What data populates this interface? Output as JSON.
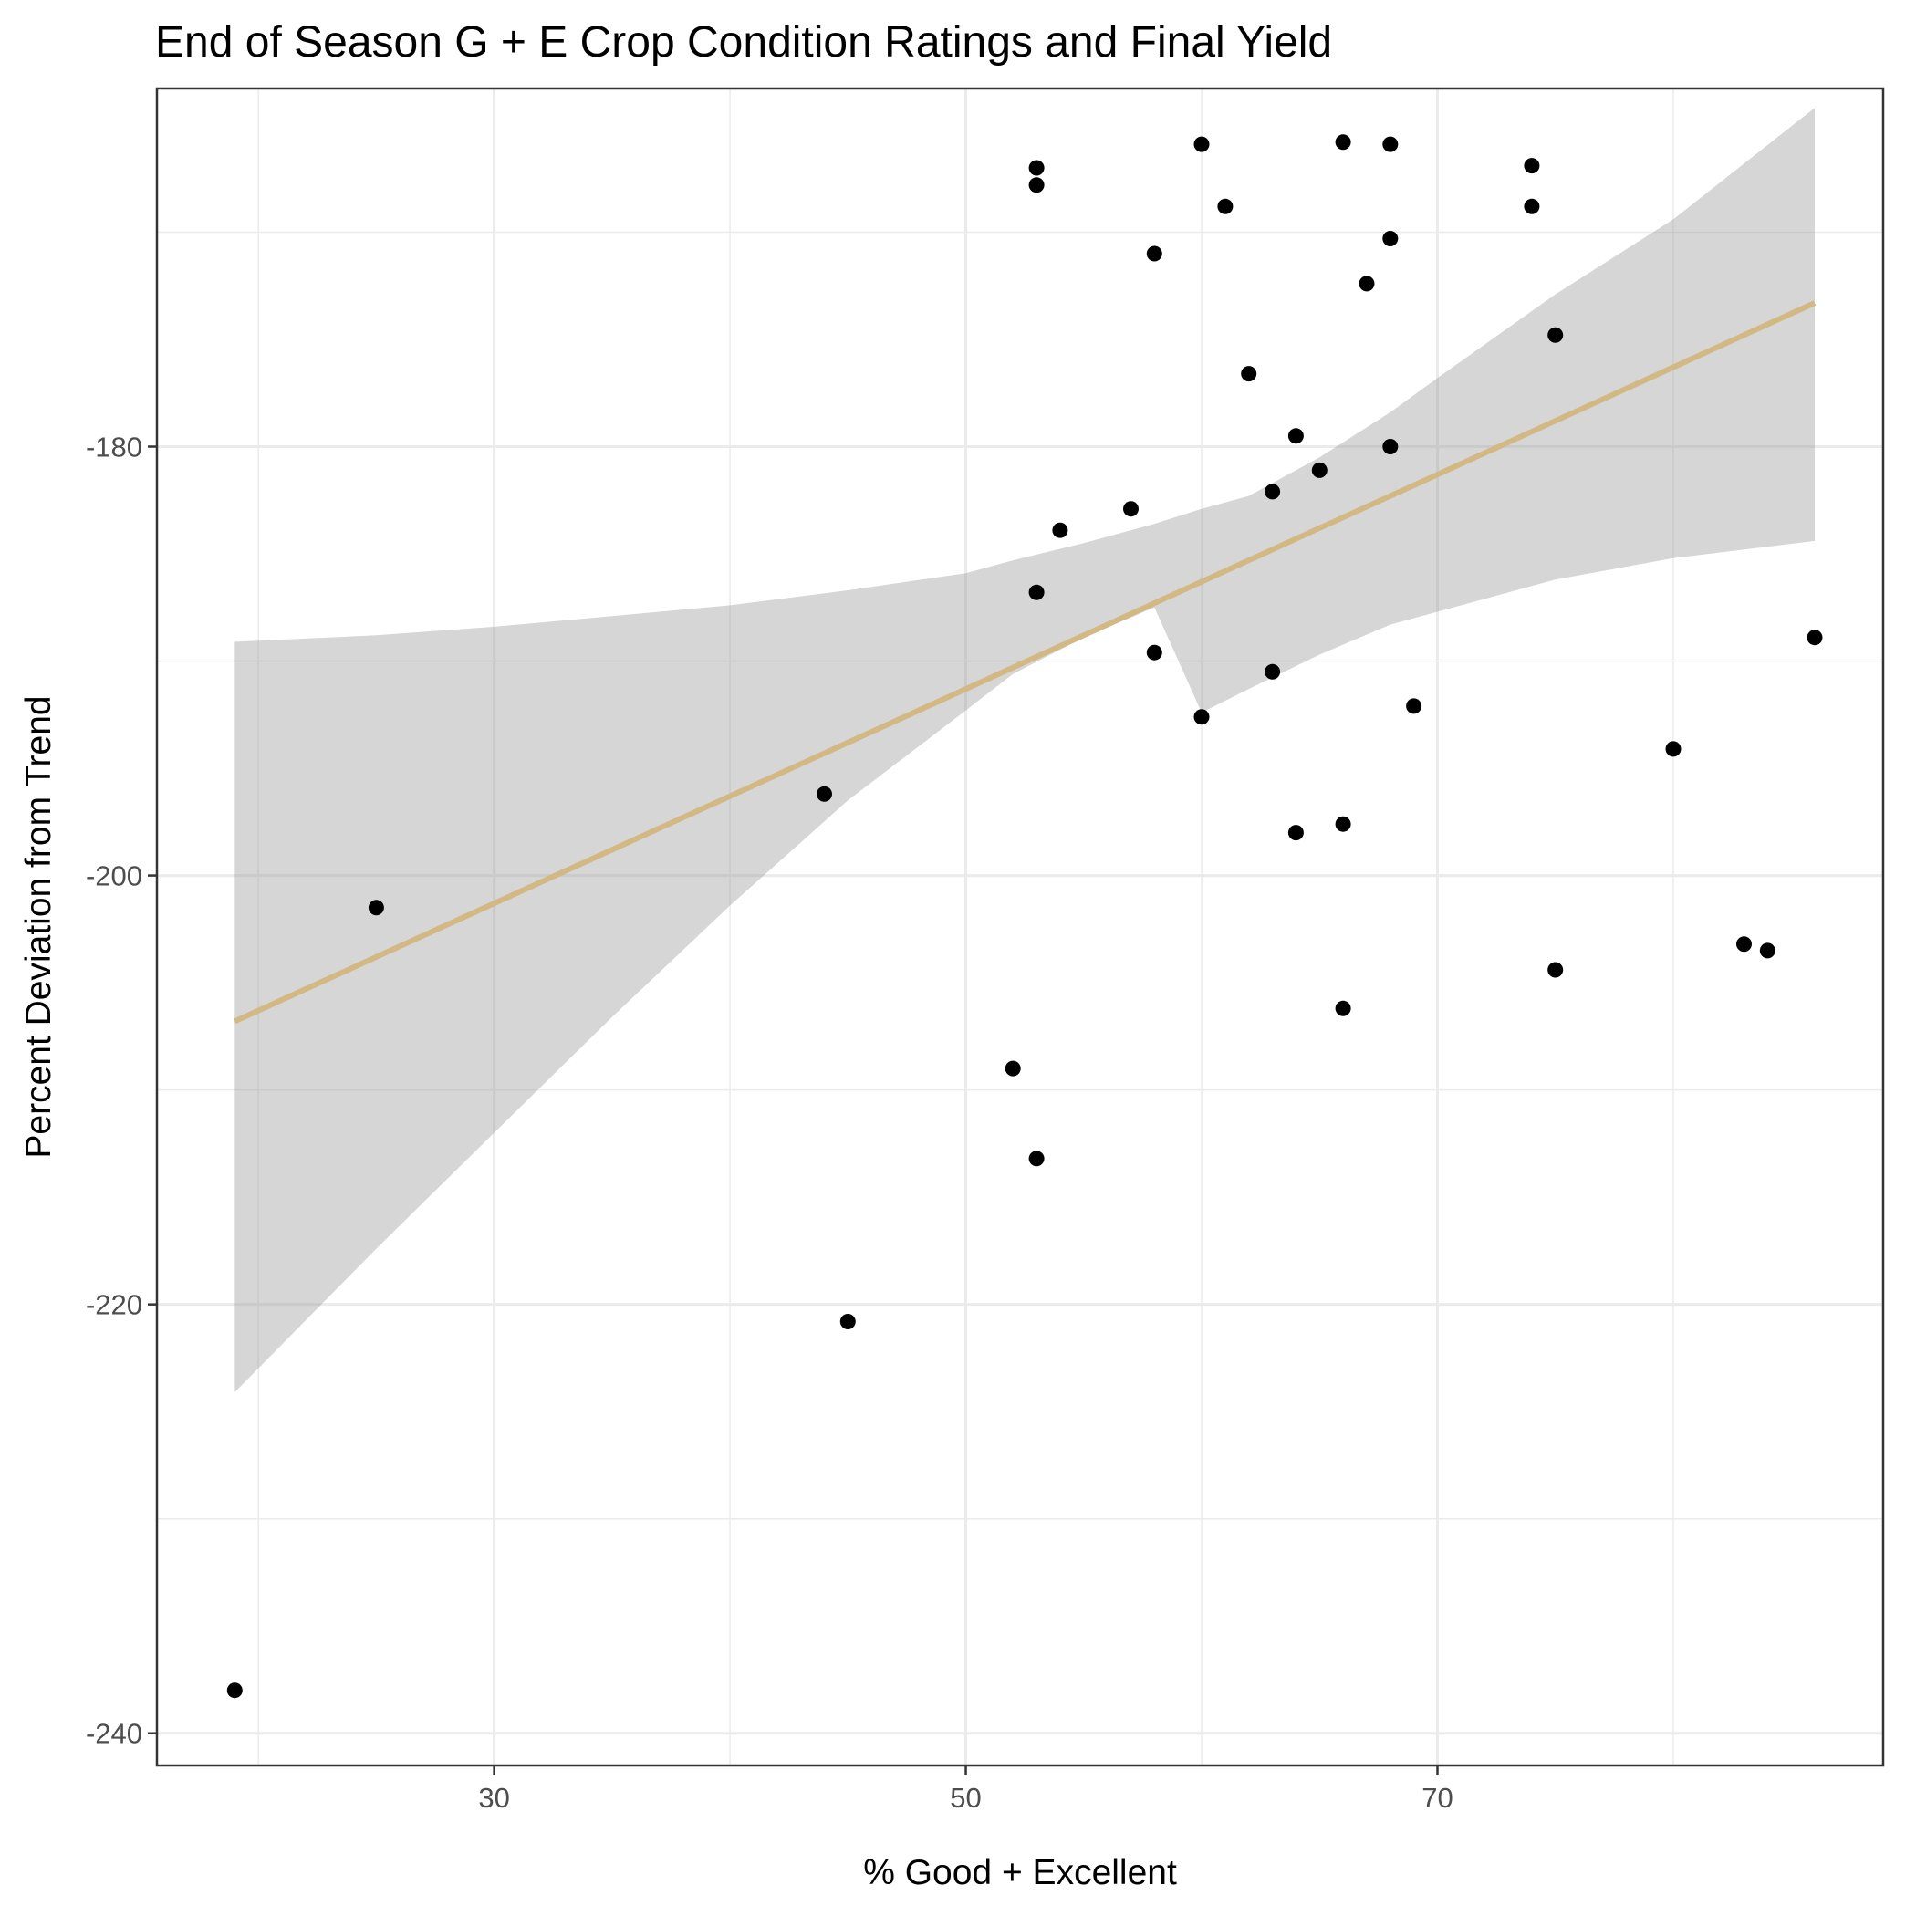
{
  "chart_data": {
    "type": "scatter",
    "title": "End of Season G + E Crop Condition Ratings and Final Yield",
    "xlabel": "% Good + Excellent",
    "ylabel": "Percent Deviation from Trend",
    "xlim": [
      15.7,
      88.9
    ],
    "ylim": [
      -241.5,
      -163.3
    ],
    "x_ticks": [
      30,
      50,
      70
    ],
    "y_ticks": [
      -240,
      -220,
      -200,
      -180
    ],
    "x_tick_labels": [
      "30",
      "50",
      "70"
    ],
    "y_tick_labels": [
      "-240",
      "-220",
      "-200",
      "-180"
    ],
    "grid": true,
    "point_color": "#000000",
    "smooth_color": "#d2b883",
    "ribbon_color": "#999999",
    "points": [
      {
        "x": 19,
        "y": -238
      },
      {
        "x": 25,
        "y": -201.5
      },
      {
        "x": 44,
        "y": -196.2
      },
      {
        "x": 45,
        "y": -220.8
      },
      {
        "x": 52,
        "y": -209
      },
      {
        "x": 53,
        "y": -167
      },
      {
        "x": 53,
        "y": -167.8
      },
      {
        "x": 53,
        "y": -186.8
      },
      {
        "x": 53,
        "y": -213.2
      },
      {
        "x": 54,
        "y": -183.9
      },
      {
        "x": 57,
        "y": -182.9
      },
      {
        "x": 58,
        "y": -171
      },
      {
        "x": 58,
        "y": -189.6
      },
      {
        "x": 60,
        "y": -165.9
      },
      {
        "x": 60,
        "y": -192.6
      },
      {
        "x": 61,
        "y": -168.8
      },
      {
        "x": 62,
        "y": -176.6
      },
      {
        "x": 63,
        "y": -182.1
      },
      {
        "x": 63,
        "y": -190.5
      },
      {
        "x": 64,
        "y": -179.5
      },
      {
        "x": 64,
        "y": -198
      },
      {
        "x": 65,
        "y": -181.1
      },
      {
        "x": 66,
        "y": -165.8
      },
      {
        "x": 66,
        "y": -197.6
      },
      {
        "x": 66,
        "y": -206.2
      },
      {
        "x": 67,
        "y": -172.4
      },
      {
        "x": 68,
        "y": -165.9
      },
      {
        "x": 68,
        "y": -170.3
      },
      {
        "x": 68,
        "y": -180
      },
      {
        "x": 69,
        "y": -192.1
      },
      {
        "x": 74,
        "y": -166.9
      },
      {
        "x": 74,
        "y": -168.8
      },
      {
        "x": 75,
        "y": -174.8
      },
      {
        "x": 75,
        "y": -204.4
      },
      {
        "x": 80,
        "y": -194.1
      },
      {
        "x": 83,
        "y": -203.2
      },
      {
        "x": 84,
        "y": -203.5
      },
      {
        "x": 86,
        "y": -188.9
      }
    ],
    "smooth": {
      "method": "lm",
      "x": [
        19,
        25,
        30,
        35,
        40,
        45,
        50,
        52,
        55,
        58,
        60,
        62,
        65,
        68,
        70,
        75,
        80,
        86
      ],
      "y": [
        -206.8,
        -203.8,
        -201.3,
        -198.8,
        -196.3,
        -193.8,
        -191.3,
        -190.3,
        -188.8,
        -187.3,
        -186.3,
        -185.3,
        -183.8,
        -182.3,
        -181.3,
        -178.8,
        -176.3,
        -173.3
      ],
      "lower": [
        -224.1,
        -217.4,
        -212.0,
        -206.6,
        -201.4,
        -196.5,
        -192.3,
        -190.6,
        -188.9,
        -187.5,
        -192.4,
        -191.3,
        -189.7,
        -188.3,
        -187.7,
        -186.2,
        -185.2,
        -184.4
      ],
      "upper": [
        -189.1,
        -188.8,
        -188.4,
        -187.9,
        -187.4,
        -186.7,
        -185.9,
        -185.3,
        -184.5,
        -183.6,
        -182.9,
        -182.3,
        -180.5,
        -178.4,
        -176.8,
        -172.9,
        -169.4,
        -164.2
      ]
    }
  }
}
